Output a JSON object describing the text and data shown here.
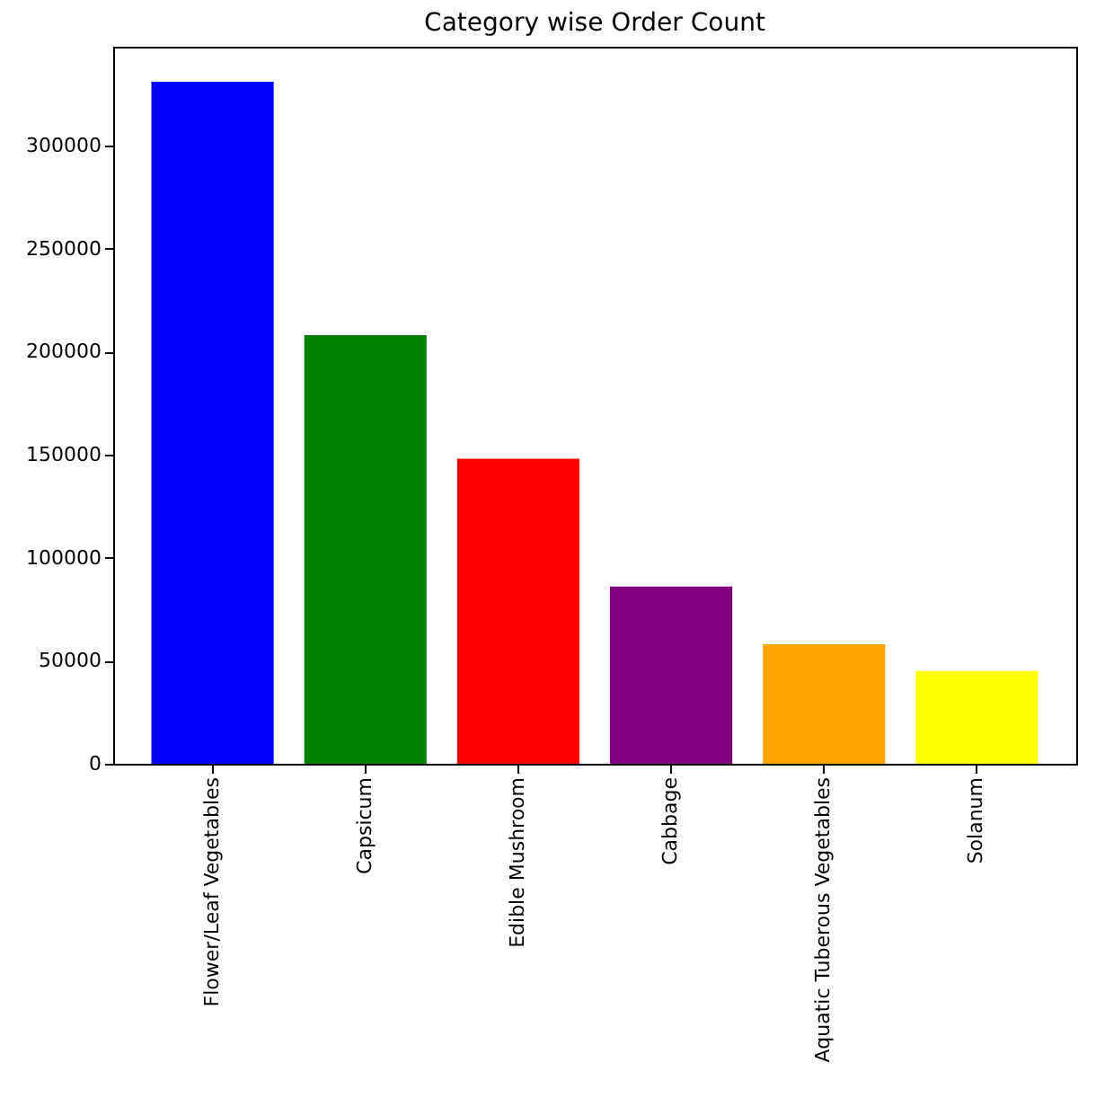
{
  "chart_data": {
    "type": "bar",
    "title": "Category wise Order Count",
    "categories": [
      "Flower/Leaf Vegetables",
      "Capsicum",
      "Edible Mushroom",
      "Cabbage",
      "Aquatic Tuberous Vegetables",
      "Solanum"
    ],
    "values": [
      331000,
      208000,
      148000,
      86000,
      58000,
      45000
    ],
    "colors": [
      "#0000ff",
      "#008000",
      "#ff0000",
      "#800080",
      "#ffa500",
      "#ffff00"
    ],
    "ylim": [
      0,
      348000
    ],
    "yticks": [
      0,
      50000,
      100000,
      150000,
      200000,
      250000,
      300000
    ],
    "grid": false
  }
}
